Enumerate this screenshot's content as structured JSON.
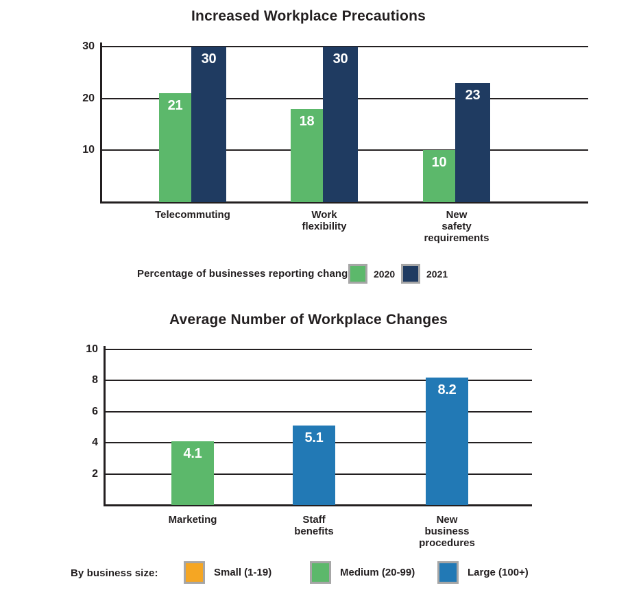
{
  "colors": {
    "text": "#231F20",
    "axis": "#231F20",
    "green": "#5CB86B",
    "navy": "#1F3B61",
    "blue": "#2279B5",
    "orange": "#F5A623",
    "swatch_border": "#A6A6A6",
    "bar_value_text": "#ffffff",
    "background": "#ffffff"
  },
  "chart_data": [
    {
      "type": "bar",
      "title": "Increased Workplace Precautions",
      "caption": "Percentage of businesses reporting change",
      "categories": [
        [
          "Telecommuting"
        ],
        [
          "Work",
          "flexibility"
        ],
        [
          "New",
          "safety",
          "requirements"
        ]
      ],
      "series": [
        {
          "name": "2020",
          "color": "#5CB86B",
          "values": [
            21,
            18,
            10
          ]
        },
        {
          "name": "2021",
          "color": "#1F3B61",
          "values": [
            30,
            30,
            23
          ]
        }
      ],
      "ylim": [
        0,
        30
      ],
      "yticks": [
        10,
        20,
        30
      ],
      "grid": true,
      "legend_position": "below-categories"
    },
    {
      "type": "bar",
      "title": "Average Number of Workplace Changes",
      "categories": [
        [
          "Marketing"
        ],
        [
          "Staff",
          "benefits"
        ],
        [
          "New",
          "business",
          "procedures"
        ]
      ],
      "values": [
        4.1,
        5.1,
        8.2
      ],
      "bar_colors": [
        "#5CB86B",
        "#2279B5",
        "#2279B5"
      ],
      "ylim": [
        0,
        10
      ],
      "yticks": [
        2,
        4,
        6,
        8,
        10
      ],
      "grid": true,
      "legend_label": "By business size:",
      "legend_items": [
        {
          "color": "#F5A623",
          "label": "Small (1-19)"
        },
        {
          "color": "#5CB86B",
          "label": "Medium (20-99)"
        },
        {
          "color": "#2279B5",
          "label": "Large (100+)"
        }
      ],
      "legend_position": "bottom"
    }
  ]
}
